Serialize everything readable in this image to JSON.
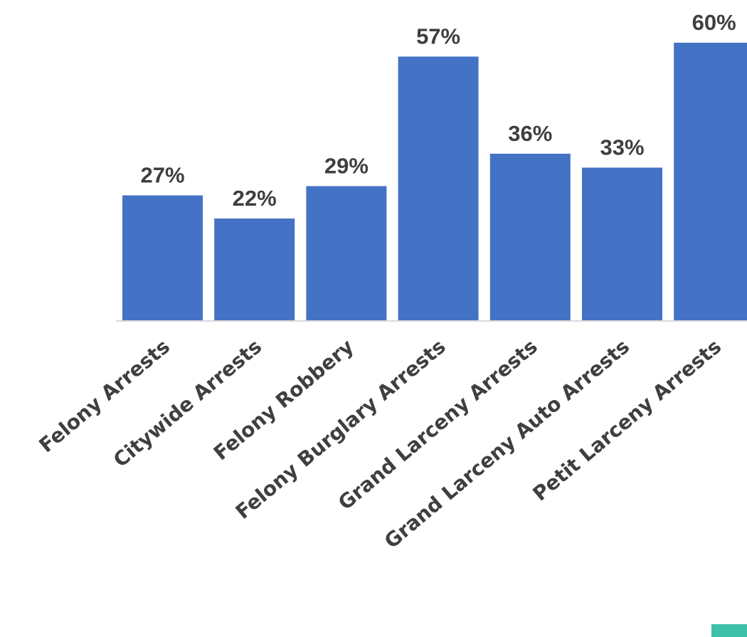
{
  "chart_data": {
    "type": "bar",
    "title": "",
    "xlabel": "",
    "ylabel": "",
    "categories": [
      "Felony Arrests",
      "Citywide Arrests",
      "Felony Robbery",
      "Felony Burglary Arrests",
      "Grand Larceny Arrests",
      "Grand Larceny Auto Arrests",
      "Petit Larceny Arrests"
    ],
    "values": [
      27,
      22,
      29,
      57,
      36,
      33,
      60
    ],
    "data_labels": [
      "27%",
      "22%",
      "29%",
      "57%",
      "36%",
      "33%",
      "60%"
    ],
    "value_unit": "%",
    "ylim": [
      0,
      60
    ],
    "grid": false,
    "legend": "none",
    "bar_color": "#4472c4",
    "axis_color": "#d9d9d9",
    "label_color": "#3f3f3f"
  },
  "corner_mark_color": "#3fc1a9"
}
